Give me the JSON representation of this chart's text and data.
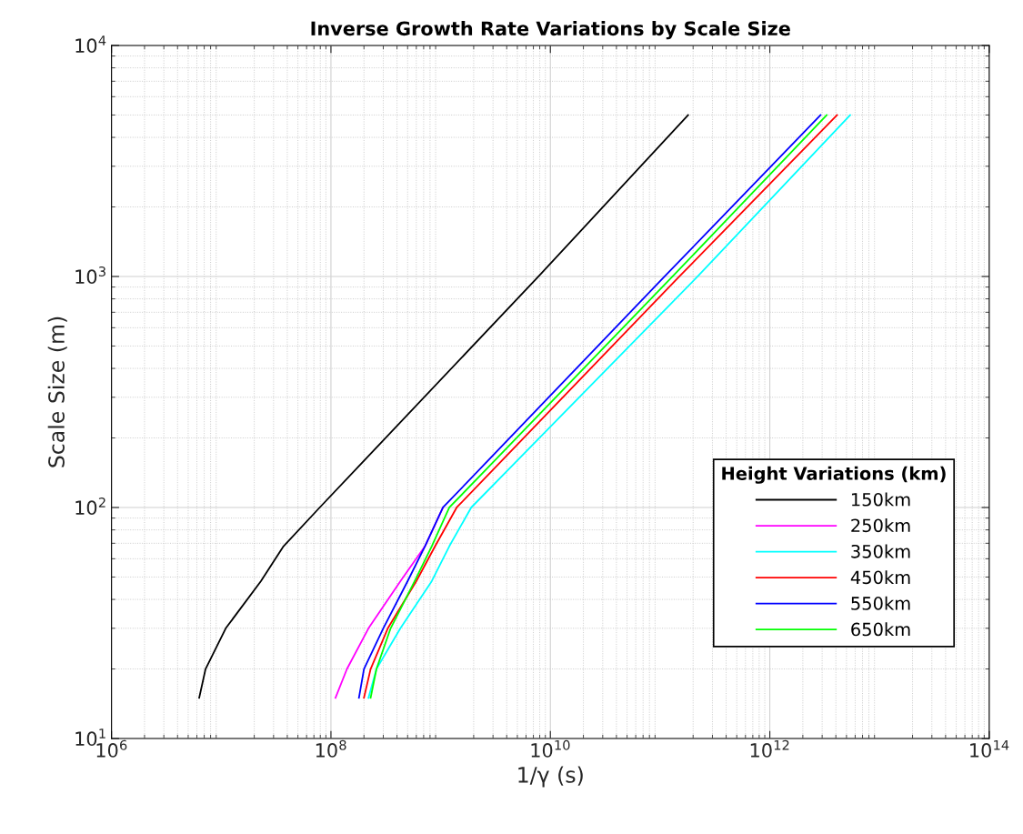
{
  "chart_data": {
    "type": "line",
    "title": "Inverse Growth Rate Variations by Scale Size",
    "xlabel": "1/γ (s)",
    "ylabel": "Scale Size (m)",
    "legend_title": "Height Variations (km)",
    "log": "xy",
    "grid": true,
    "legend": "bottom right",
    "line_style": "solid",
    "marker": "none",
    "xlim": [
      1000000,
      100000000000000
    ],
    "ylim": [
      10,
      10000
    ],
    "xticks": [
      {
        "value": 1000000,
        "label": "10$^{6}$"
      },
      {
        "value": 100000000,
        "label": "10$^{8}$"
      },
      {
        "value": 10000000000,
        "label": "10$^{10}$"
      },
      {
        "value": 1000000000000,
        "label": "10$^{12}$"
      },
      {
        "value": 100000000000000,
        "label": "10$^{14}$"
      }
    ],
    "yticks": [
      {
        "value": 10,
        "label": "10$^{1}$"
      },
      {
        "value": 100,
        "label": "10$^{2}$"
      },
      {
        "value": 1000,
        "label": "10$^{3}$"
      },
      {
        "value": 10000,
        "label": "10$^{4}$"
      }
    ],
    "series": [
      {
        "name": "150km",
        "color": "#000000",
        "x": [
          6300000,
          7200000,
          11000000,
          23000000,
          37000000,
          79000000,
          7800000000,
          180000000000
        ],
        "values": [
          15,
          20,
          30,
          48,
          68,
          100,
          1000,
          5000
        ]
      },
      {
        "name": "250km",
        "color": "#ff00ff",
        "x": [
          110000000,
          140000000,
          220000000,
          430000000,
          720000000,
          1050000000
        ],
        "values": [
          15,
          20,
          30,
          48,
          68,
          100
        ]
      },
      {
        "name": "350km",
        "color": "#00ffff",
        "x": [
          220000000,
          260000000,
          430000000,
          830000000,
          1200000000,
          1900000000,
          220000000000,
          5400000000000
        ],
        "values": [
          15,
          20,
          30,
          48,
          68,
          100,
          1000,
          5000
        ]
      },
      {
        "name": "450km",
        "color": "#ff0000",
        "x": [
          200000000,
          230000000,
          330000000,
          600000000,
          890000000,
          1400000000,
          150000000000,
          4100000000000
        ],
        "values": [
          15,
          20,
          30,
          48,
          68,
          100,
          1000,
          5000
        ]
      },
      {
        "name": "550km",
        "color": "#0000ff",
        "x": [
          180000000,
          200000000,
          300000000,
          500000000,
          720000000,
          1050000000,
          110000000000,
          2900000000000
        ],
        "values": [
          15,
          20,
          30,
          48,
          68,
          100,
          1000,
          5000
        ]
      },
      {
        "name": "650km",
        "color": "#00ff00",
        "x": [
          230000000,
          260000000,
          350000000,
          580000000,
          830000000,
          1200000000,
          130000000000,
          3300000000000
        ],
        "values": [
          15,
          20,
          30,
          48,
          68,
          100,
          1000,
          5000
        ]
      }
    ]
  }
}
